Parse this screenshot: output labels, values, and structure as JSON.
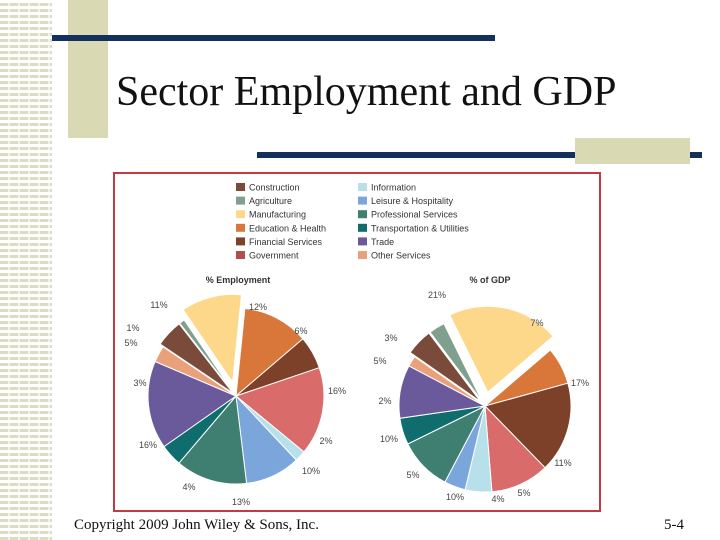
{
  "slide": {
    "title": "Sector Employment and GDP",
    "footer": "Copyright 2009 John Wiley & Sons, Inc.",
    "page_number": "5-4"
  },
  "chart_data": [
    {
      "type": "pie",
      "title": "% Employment",
      "legend_placement": "top",
      "slices": [
        {
          "label": "Construction",
          "value": 5,
          "color": "#7a4a3a"
        },
        {
          "label": "Agriculture",
          "value": 1,
          "color": "#7fa08e"
        },
        {
          "label": "Manufacturing",
          "value": 11,
          "color": "#fdd88a"
        },
        {
          "label": "Education & Health",
          "value": 12,
          "color": "#d9773b"
        },
        {
          "label": "Financial Services",
          "value": 6,
          "color": "#7c4128"
        },
        {
          "label": "Government",
          "value": 16,
          "color": "#da6b6b"
        },
        {
          "label": "Information",
          "value": 2,
          "color": "#b8e0ea"
        },
        {
          "label": "Leisure & Hospitality",
          "value": 10,
          "color": "#7aa6dc"
        },
        {
          "label": "Professional Services",
          "value": 13,
          "color": "#3f7f72"
        },
        {
          "label": "Transportation & Utilities",
          "value": 4,
          "color": "#0f6d6d"
        },
        {
          "label": "Trade",
          "value": 16,
          "color": "#6a5a9c"
        },
        {
          "label": "Other Services",
          "value": 3,
          "color": "#e9a17c"
        }
      ],
      "slice_labels": [
        "5%",
        "1%",
        "11%",
        "12%",
        "6%",
        "16%",
        "2%",
        "10%",
        "13%",
        "4%",
        "16%",
        "3%"
      ]
    },
    {
      "type": "pie",
      "title": "% of GDP",
      "legend_placement": "top",
      "slices": [
        {
          "label": "Construction",
          "value": 5,
          "color": "#7a4a3a"
        },
        {
          "label": "Agriculture",
          "value": 3,
          "color": "#7fa08e"
        },
        {
          "label": "Manufacturing",
          "value": 21,
          "color": "#fdd88a"
        },
        {
          "label": "Education & Health",
          "value": 7,
          "color": "#d9773b"
        },
        {
          "label": "Financial Services",
          "value": 17,
          "color": "#7c4128"
        },
        {
          "label": "Government",
          "value": 11,
          "color": "#da6b6b"
        },
        {
          "label": "Information",
          "value": 5,
          "color": "#b8e0ea"
        },
        {
          "label": "Leisure & Hospitality",
          "value": 4,
          "color": "#7aa6dc"
        },
        {
          "label": "Professional Services",
          "value": 10,
          "color": "#3f7f72"
        },
        {
          "label": "Transportation & Utilities",
          "value": 5,
          "color": "#0f6d6d"
        },
        {
          "label": "Trade",
          "value": 10,
          "color": "#6a5a9c"
        },
        {
          "label": "Other Services",
          "value": 2,
          "color": "#e9a17c"
        }
      ],
      "slice_labels": [
        "5%",
        "3%",
        "21%",
        "7%",
        "17%",
        "11%",
        "5%",
        "4%",
        "10%",
        "5%",
        "10%",
        "2%"
      ]
    }
  ],
  "legend": {
    "items": [
      {
        "label": "Construction",
        "color": "#7a4a3a"
      },
      {
        "label": "Agriculture",
        "color": "#7fa08e"
      },
      {
        "label": "Manufacturing",
        "color": "#fdd88a"
      },
      {
        "label": "Education & Health",
        "color": "#d9773b"
      },
      {
        "label": "Financial Services",
        "color": "#7c4128"
      },
      {
        "label": "Government",
        "color": "#b14f4f"
      },
      {
        "label": "Information",
        "color": "#b8e0ea"
      },
      {
        "label": "Leisure & Hospitality",
        "color": "#7aa6dc"
      },
      {
        "label": "Professional Services",
        "color": "#3f7f72"
      },
      {
        "label": "Transportation & Utilities",
        "color": "#0f6d6d"
      },
      {
        "label": "Trade",
        "color": "#6a5a9c"
      },
      {
        "label": "Other Services",
        "color": "#e9a17c"
      }
    ]
  }
}
